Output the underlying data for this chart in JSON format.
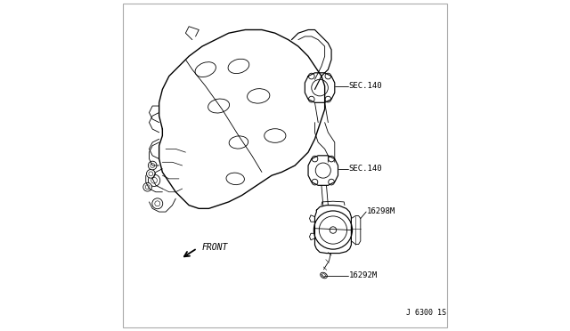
{
  "background_color": "#ffffff",
  "line_color": "#000000",
  "labels": {
    "sec140_upper": "SEC.140",
    "sec140_lower": "SEC.140",
    "part_16298M": "16298M",
    "part_16292M": "16292M",
    "front": "FRONT",
    "diagram_num": "J 6300 1S"
  },
  "figsize": [
    6.4,
    3.72
  ],
  "dpi": 100
}
